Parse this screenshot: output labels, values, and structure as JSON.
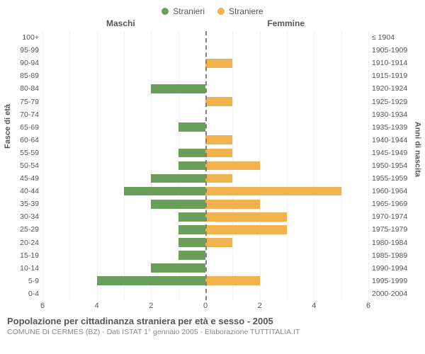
{
  "legend": {
    "male": {
      "label": "Stranieri",
      "color": "#6a9e5b"
    },
    "female": {
      "label": "Straniere",
      "color": "#f0b24c"
    }
  },
  "headers": {
    "male": "Maschi",
    "female": "Femmine"
  },
  "axis_titles": {
    "left": "Fasce di età",
    "right": "Anni di nascita"
  },
  "chart": {
    "x_max": 6,
    "x_ticks": [
      6,
      4,
      2,
      0,
      2,
      4,
      6
    ],
    "grid_color": "#999999",
    "background_color": "#ffffff",
    "label_fontsize": 10.5,
    "tick_fontsize": 11,
    "rows": [
      {
        "age": "100+",
        "birth": "≤ 1904",
        "m": 0,
        "f": 0
      },
      {
        "age": "95-99",
        "birth": "1905-1909",
        "m": 0,
        "f": 0
      },
      {
        "age": "90-94",
        "birth": "1910-1914",
        "m": 0,
        "f": 1
      },
      {
        "age": "85-89",
        "birth": "1915-1919",
        "m": 0,
        "f": 0
      },
      {
        "age": "80-84",
        "birth": "1920-1924",
        "m": 2,
        "f": 0
      },
      {
        "age": "75-79",
        "birth": "1925-1929",
        "m": 0,
        "f": 1
      },
      {
        "age": "70-74",
        "birth": "1930-1934",
        "m": 0,
        "f": 0
      },
      {
        "age": "65-69",
        "birth": "1935-1939",
        "m": 1,
        "f": 0
      },
      {
        "age": "60-64",
        "birth": "1940-1944",
        "m": 0,
        "f": 1
      },
      {
        "age": "55-59",
        "birth": "1945-1949",
        "m": 1,
        "f": 1
      },
      {
        "age": "50-54",
        "birth": "1950-1954",
        "m": 1,
        "f": 2
      },
      {
        "age": "45-49",
        "birth": "1955-1959",
        "m": 2,
        "f": 1
      },
      {
        "age": "40-44",
        "birth": "1960-1964",
        "m": 3,
        "f": 5
      },
      {
        "age": "35-39",
        "birth": "1965-1969",
        "m": 2,
        "f": 2
      },
      {
        "age": "30-34",
        "birth": "1970-1974",
        "m": 1,
        "f": 3
      },
      {
        "age": "25-29",
        "birth": "1975-1979",
        "m": 1,
        "f": 3
      },
      {
        "age": "20-24",
        "birth": "1980-1984",
        "m": 1,
        "f": 1
      },
      {
        "age": "15-19",
        "birth": "1985-1989",
        "m": 1,
        "f": 0
      },
      {
        "age": "10-14",
        "birth": "1990-1994",
        "m": 2,
        "f": 0
      },
      {
        "age": "5-9",
        "birth": "1995-1999",
        "m": 4,
        "f": 2
      },
      {
        "age": "0-4",
        "birth": "2000-2004",
        "m": 0,
        "f": 0
      }
    ]
  },
  "footer": {
    "title": "Popolazione per cittadinanza straniera per età e sesso - 2005",
    "subtitle": "COMUNE DI CERMES (BZ) - Dati ISTAT 1° gennaio 2005 - Elaborazione TUTTITALIA.IT"
  }
}
